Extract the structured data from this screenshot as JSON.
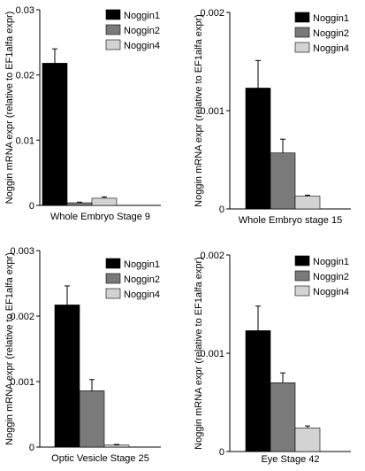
{
  "chart_data": [
    {
      "type": "bar",
      "categories": [
        "Noggin1",
        "Noggin2",
        "Noggin4"
      ],
      "values": [
        0.0218,
        0.0004,
        0.0011
      ],
      "errors": [
        0.0022,
        0.0001,
        0.0002
      ],
      "xlabel": "Whole Embryo Stage 9",
      "ylabel": "Noggin mRNA expr (relative to EF1alfa expr)",
      "ylim": [
        0,
        0.03
      ],
      "yticks": [
        0,
        0.01,
        0.02,
        0.03
      ],
      "yticklabels": [
        "0",
        "0.01",
        "0.02",
        "0.03"
      ],
      "legend": [
        "Noggin1",
        "Noggin2",
        "Noggin4"
      ],
      "legend_position": "top-right",
      "grid": false
    },
    {
      "type": "bar",
      "categories": [
        "Noggin1",
        "Noggin2",
        "Noggin4"
      ],
      "values": [
        0.00123,
        0.00057,
        0.00013
      ],
      "errors": [
        0.00028,
        0.00014,
        1e-05
      ],
      "xlabel": "Whole Embryo stage 15",
      "ylabel": "Noggin mRNA expr (relative to EF1alfa expr)",
      "ylim": [
        0,
        0.002
      ],
      "yticks": [
        0,
        0.001,
        0.002
      ],
      "yticklabels": [
        "0",
        "0.001",
        "0.002"
      ],
      "legend": [
        "Noggin1",
        "Noggin2",
        "Noggin4"
      ],
      "legend_position": "top-right",
      "grid": false
    },
    {
      "type": "bar",
      "categories": [
        "Noggin1",
        "Noggin2",
        "Noggin4"
      ],
      "values": [
        0.00217,
        0.00086,
        3e-05
      ],
      "errors": [
        0.00029,
        0.00017,
        1e-05
      ],
      "xlabel": "Optic Vesicle Stage 25",
      "ylabel": "Noggin mRNA expr (relative to EF1alfa expr)",
      "ylim": [
        0,
        0.003
      ],
      "yticks": [
        0,
        0.001,
        0.002,
        0.003
      ],
      "yticklabels": [
        "0",
        "0.001",
        "0.002",
        "0.003"
      ],
      "legend": [
        "Noggin1",
        "Noggin2",
        "Noggin4"
      ],
      "legend_position": "top-right",
      "grid": false
    },
    {
      "type": "bar",
      "categories": [
        "Noggin1",
        "Noggin2",
        "Noggin4"
      ],
      "values": [
        0.00123,
        0.0007,
        0.00024
      ],
      "errors": [
        0.00025,
        0.0001,
        2e-05
      ],
      "xlabel": "Eye Stage 42",
      "ylabel": "Noggin mRNA expr (relative to EF1alfa expr)",
      "ylim": [
        0,
        0.002
      ],
      "yticks": [
        0,
        0.001,
        0.002
      ],
      "yticklabels": [
        "0",
        "0.001",
        "0.002"
      ],
      "legend": [
        "Noggin1",
        "Noggin2",
        "Noggin4"
      ],
      "legend_position": "top-right",
      "grid": false
    }
  ],
  "colors": [
    "#000000",
    "#7a7a7a",
    "#d3d3d3"
  ]
}
